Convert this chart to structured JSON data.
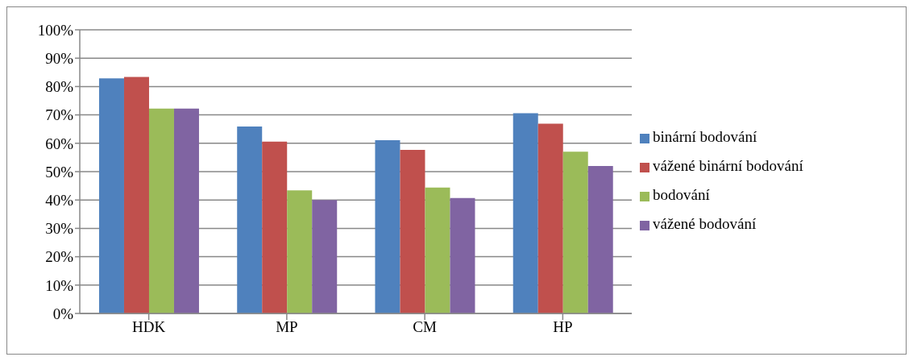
{
  "chart_data": {
    "type": "bar",
    "categories": [
      "HDK",
      "MP",
      "CM",
      "HP"
    ],
    "series": [
      {
        "name": "binární bodování",
        "color": "#4f81bd",
        "values": [
          82.9,
          65.9,
          61.1,
          70.6
        ]
      },
      {
        "name": "vážené binární bodování",
        "color": "#c0504d",
        "values": [
          83.4,
          60.6,
          57.7,
          66.9
        ]
      },
      {
        "name": "bodování",
        "color": "#9bbb59",
        "values": [
          72.2,
          43.4,
          44.4,
          57.0
        ]
      },
      {
        "name": "vážené bodování",
        "color": "#8064a2",
        "values": [
          72.2,
          40.0,
          40.7,
          52.0
        ]
      }
    ],
    "ylim": [
      0,
      100
    ],
    "yticks": [
      {
        "value": 0,
        "label": "0%"
      },
      {
        "value": 10,
        "label": "10%"
      },
      {
        "value": 20,
        "label": "20%"
      },
      {
        "value": 30,
        "label": "30%"
      },
      {
        "value": 40,
        "label": "40%"
      },
      {
        "value": 50,
        "label": "50%"
      },
      {
        "value": 60,
        "label": "60%"
      },
      {
        "value": 70,
        "label": "70%"
      },
      {
        "value": 80,
        "label": "80%"
      },
      {
        "value": 90,
        "label": "90%"
      },
      {
        "value": 100,
        "label": "100%"
      }
    ],
    "grid": "y",
    "legend": "right"
  }
}
